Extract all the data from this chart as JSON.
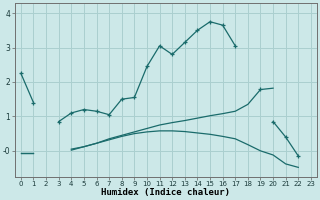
{
  "title": "",
  "xlabel": "Humidex (Indice chaleur)",
  "background_color": "#cce8e8",
  "grid_color": "#aacfcf",
  "line_color": "#1a6b6b",
  "x_values": [
    0,
    1,
    2,
    3,
    4,
    5,
    6,
    7,
    8,
    9,
    10,
    11,
    12,
    13,
    14,
    15,
    16,
    17,
    18,
    19,
    20,
    21,
    22,
    23
  ],
  "lines": [
    {
      "y": [
        2.25,
        1.4,
        null,
        0.85,
        1.1,
        1.2,
        1.15,
        1.05,
        1.5,
        1.55,
        2.45,
        3.05,
        2.8,
        3.15,
        3.5,
        3.75,
        3.65,
        3.05,
        null,
        1.8,
        null,
        null,
        null,
        null
      ],
      "marker": true
    },
    {
      "y": [
        null,
        null,
        null,
        null,
        null,
        null,
        null,
        null,
        null,
        null,
        null,
        null,
        null,
        null,
        null,
        null,
        null,
        null,
        null,
        null,
        0.85,
        0.4,
        -0.15,
        null
      ],
      "marker": true
    },
    {
      "y": [
        -0.05,
        -0.05,
        null,
        null,
        0.02,
        0.12,
        0.22,
        0.35,
        0.45,
        0.55,
        0.65,
        0.75,
        0.82,
        0.88,
        0.95,
        1.02,
        1.08,
        1.15,
        1.35,
        1.78,
        1.82,
        null,
        null,
        null
      ],
      "marker": false
    },
    {
      "y": [
        -0.05,
        -0.05,
        null,
        null,
        0.05,
        0.12,
        0.22,
        0.32,
        0.42,
        0.5,
        0.55,
        0.58,
        0.58,
        0.56,
        0.52,
        0.48,
        0.42,
        0.35,
        0.18,
        0.0,
        -0.12,
        -0.38,
        -0.48,
        null
      ],
      "marker": false
    }
  ],
  "ylim": [
    -0.75,
    4.3
  ],
  "xlim": [
    -0.5,
    23.5
  ],
  "yticks": [
    0,
    1,
    2,
    3,
    4
  ],
  "ytick_labels": [
    "-0",
    "1",
    "2",
    "3",
    "4"
  ],
  "xticks": [
    0,
    1,
    2,
    3,
    4,
    5,
    6,
    7,
    8,
    9,
    10,
    11,
    12,
    13,
    14,
    15,
    16,
    17,
    18,
    19,
    20,
    21,
    22,
    23
  ],
  "figsize": [
    3.2,
    2.0
  ],
  "dpi": 100
}
